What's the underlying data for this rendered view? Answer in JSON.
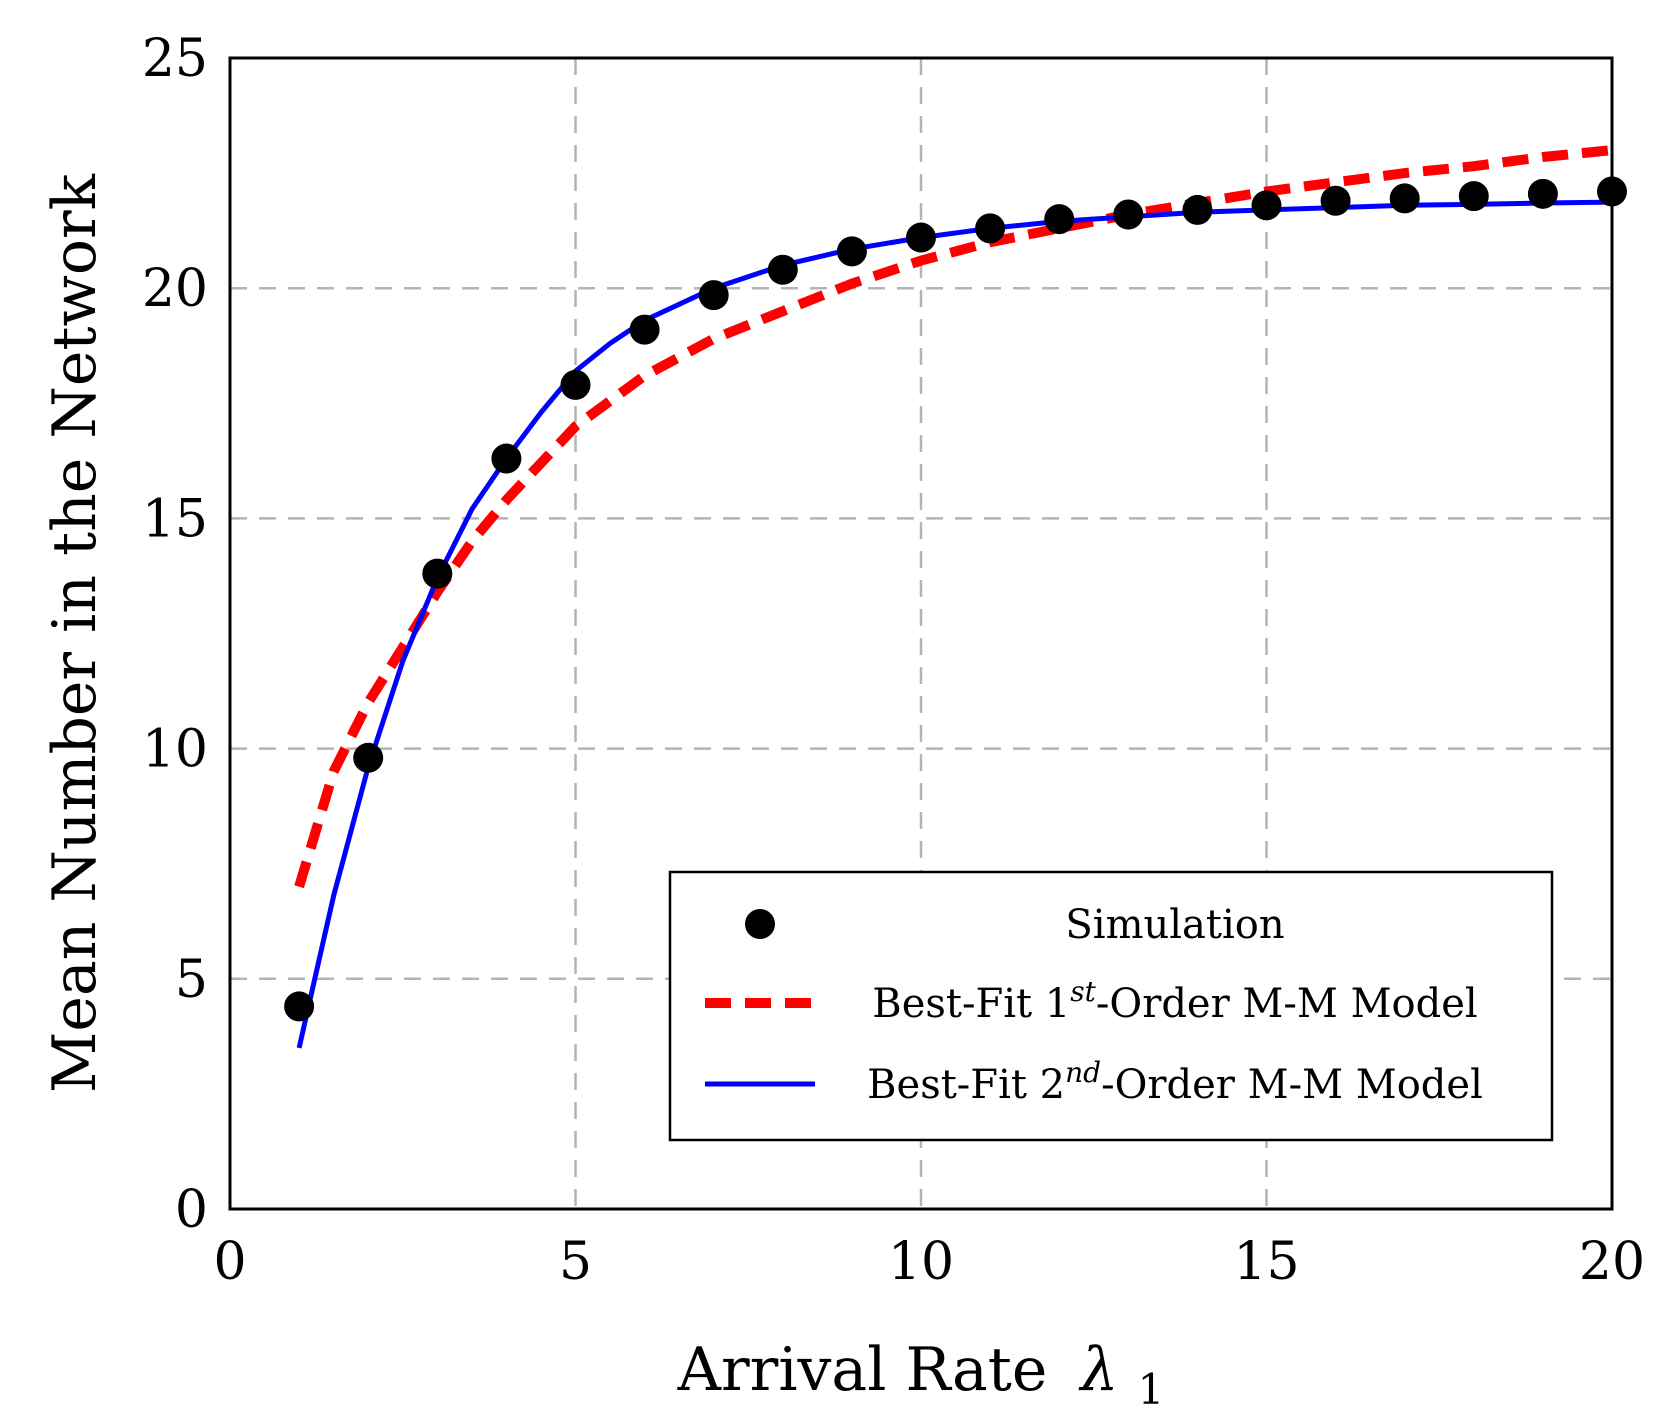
{
  "chart_data": {
    "type": "line",
    "title": "",
    "xlabel": "Arrival Rate",
    "xlabel_symbol": "λ",
    "xlabel_subscript": "1",
    "ylabel": "Mean Number in the Network",
    "xlim": [
      0,
      20
    ],
    "ylim": [
      0,
      25
    ],
    "xticks": [
      0,
      5,
      10,
      15,
      20
    ],
    "yticks": [
      0,
      5,
      10,
      15,
      20,
      25
    ],
    "grid": true,
    "legend_position": "bottom-right",
    "series": [
      {
        "name": "Simulation",
        "style": "markers",
        "color": "#000000",
        "x": [
          1,
          2,
          3,
          4,
          5,
          6,
          7,
          8,
          9,
          10,
          11,
          12,
          13,
          14,
          15,
          16,
          17,
          18,
          19,
          20
        ],
        "values": [
          4.4,
          9.8,
          13.8,
          16.3,
          17.9,
          19.1,
          19.85,
          20.4,
          20.8,
          21.1,
          21.3,
          21.5,
          21.6,
          21.7,
          21.8,
          21.9,
          21.95,
          22.0,
          22.05,
          22.1
        ]
      },
      {
        "name": "Best-Fit 1st-Order M-M Model",
        "legend_prefix": "Best-Fit 1",
        "legend_sup": "st",
        "legend_suffix": "-Order M-M Model",
        "style": "dashed",
        "color": "#ff0000",
        "x": [
          1,
          1.5,
          2,
          2.5,
          3,
          3.5,
          4,
          5,
          6,
          7,
          8,
          9,
          10,
          11,
          12,
          13,
          14,
          15,
          16,
          17,
          18,
          19,
          20
        ],
        "values": [
          7.0,
          9.5,
          11.0,
          12.2,
          13.4,
          14.5,
          15.4,
          17.0,
          18.1,
          18.9,
          19.5,
          20.1,
          20.6,
          21.0,
          21.3,
          21.6,
          21.85,
          22.1,
          22.3,
          22.5,
          22.65,
          22.85,
          23.0
        ]
      },
      {
        "name": "Best-Fit 2nd-Order M-M Model",
        "legend_prefix": "Best-Fit 2",
        "legend_sup": "nd",
        "legend_suffix": "-Order M-M Model",
        "style": "solid",
        "color": "#0000ff",
        "x": [
          1,
          1.5,
          2,
          2.5,
          3,
          3.5,
          4,
          4.5,
          5,
          5.5,
          6,
          7,
          8,
          9,
          10,
          11,
          12,
          13,
          14,
          15,
          16,
          17,
          18,
          19,
          20
        ],
        "values": [
          3.5,
          6.8,
          9.6,
          11.9,
          13.7,
          15.2,
          16.3,
          17.3,
          18.2,
          18.8,
          19.3,
          20.0,
          20.5,
          20.85,
          21.1,
          21.3,
          21.45,
          21.55,
          21.65,
          21.7,
          21.75,
          21.8,
          21.82,
          21.85,
          21.87
        ]
      }
    ]
  }
}
